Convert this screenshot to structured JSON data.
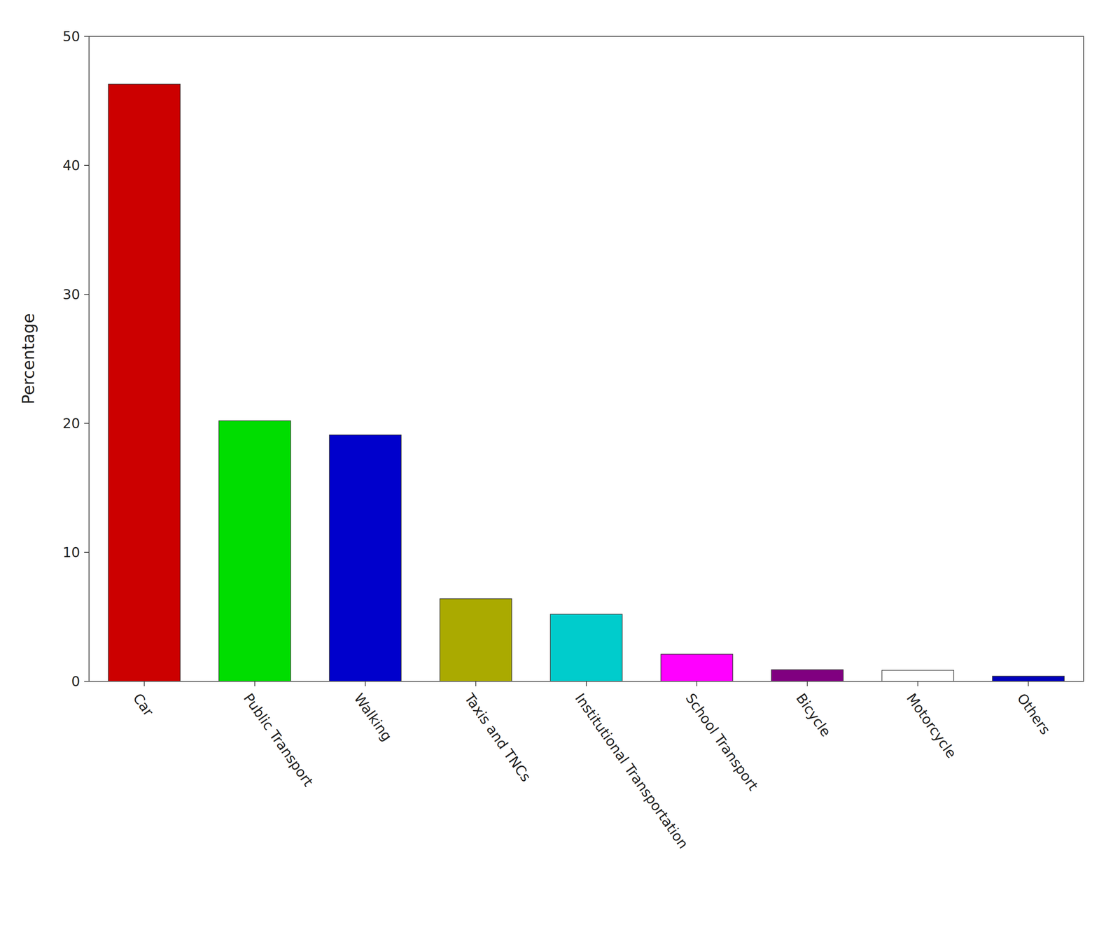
{
  "chart_data": {
    "type": "bar",
    "categories": [
      "Car",
      "Public Transport",
      "Walking",
      "Taxis and TNCs",
      "Institutional Transportation",
      "School Transport",
      "Bicycle",
      "Motorcycle",
      "Others"
    ],
    "values": [
      46.3,
      20.2,
      19.1,
      6.4,
      5.2,
      2.1,
      0.9,
      0.85,
      0.4
    ],
    "colors": [
      "#cc0000",
      "#00dd00",
      "#0000cc",
      "#aaaa00",
      "#00cccc",
      "#ff00ff",
      "#800080",
      "#ffffff",
      "#0000bb"
    ],
    "ylabel": "Percentage",
    "ylim": [
      0,
      50
    ],
    "yticks": [
      0,
      10,
      20,
      30,
      40,
      50
    ],
    "grid": false
  }
}
